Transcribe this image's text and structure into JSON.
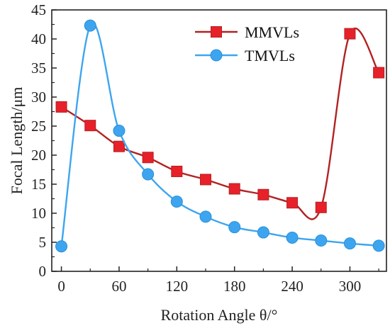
{
  "chart_data": {
    "type": "line",
    "xlabel": "Rotation Angle θ/°",
    "ylabel": "Focal Length/μm",
    "xlim": [
      -10,
      338
    ],
    "ylim": [
      0,
      45
    ],
    "xticks": [
      0,
      60,
      120,
      180,
      240,
      300
    ],
    "yticks": [
      0,
      5,
      10,
      15,
      20,
      25,
      30,
      35,
      40,
      45
    ],
    "grid": false,
    "legend_position": "top-right",
    "series": [
      {
        "name": "MMVLs",
        "color": "#b22222",
        "marker": "square",
        "marker_color": "#e8202a",
        "x": [
          0,
          30,
          60,
          90,
          120,
          150,
          180,
          210,
          240,
          270,
          300,
          330
        ],
        "y": [
          28.3,
          25.1,
          21.5,
          19.6,
          17.2,
          15.8,
          14.2,
          13.2,
          11.8,
          11.0,
          40.9,
          34.2
        ]
      },
      {
        "name": "TMVLs",
        "color": "#3da5f0",
        "marker": "circle",
        "marker_color": "#3da5f0",
        "x": [
          0,
          30,
          60,
          90,
          120,
          150,
          180,
          210,
          240,
          270,
          300,
          330
        ],
        "y": [
          4.3,
          42.3,
          24.2,
          16.7,
          12.0,
          9.4,
          7.6,
          6.7,
          5.8,
          5.3,
          4.8,
          4.4
        ]
      }
    ]
  }
}
